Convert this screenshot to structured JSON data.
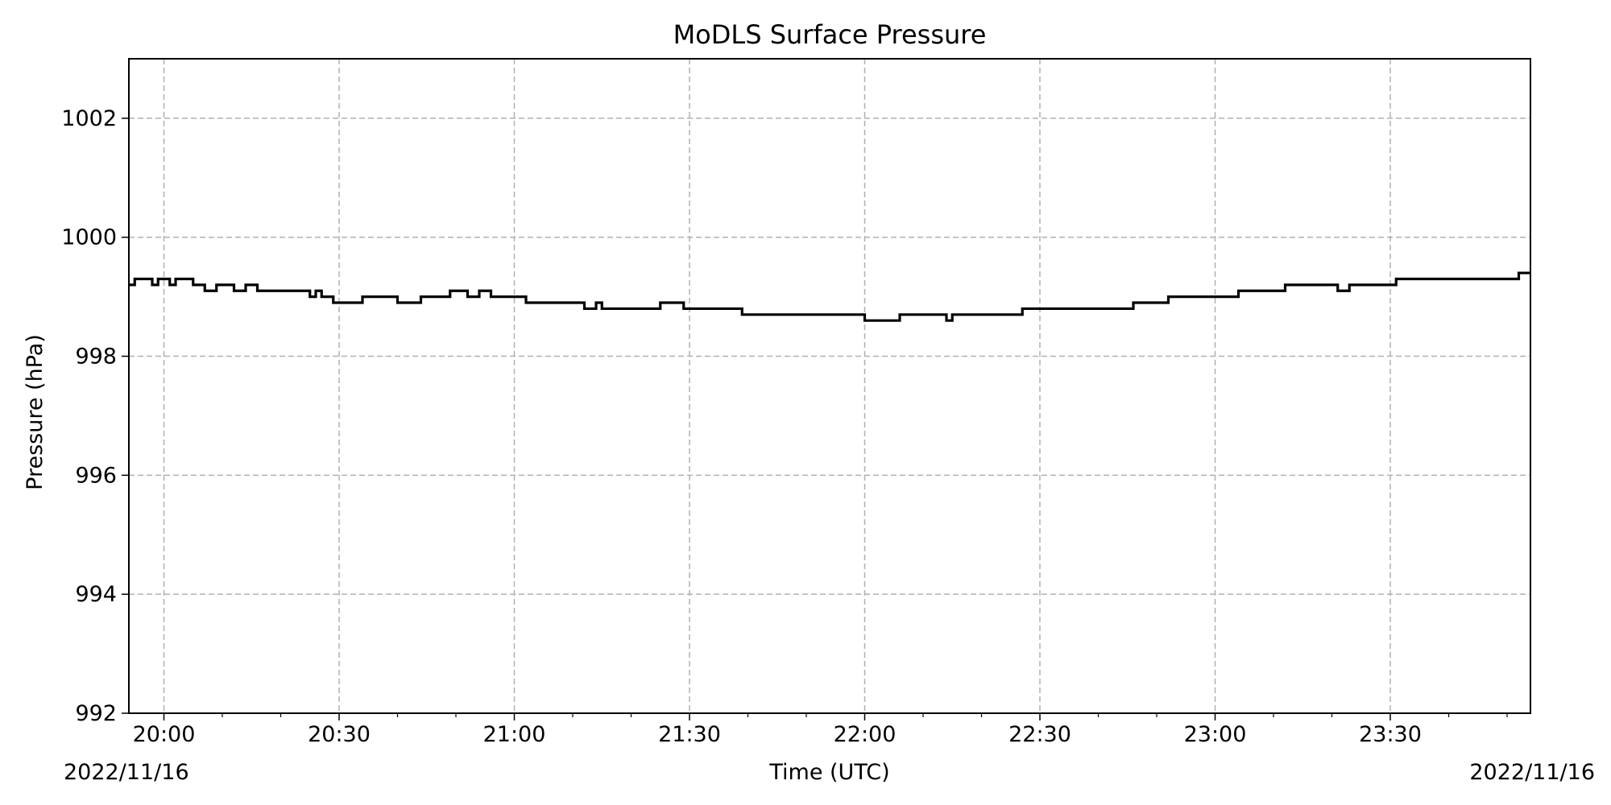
{
  "chart_data": {
    "type": "line",
    "title": "MoDLS Surface Pressure",
    "xlabel": "Time (UTC)",
    "ylabel": "Pressure (hPa)",
    "date_left": "2022/11/16",
    "date_right": "2022/11/16",
    "xlim": [
      "19:54",
      "23:54"
    ],
    "ylim": [
      992,
      1003
    ],
    "x_ticks": [
      "20:00",
      "20:30",
      "21:00",
      "21:30",
      "22:00",
      "22:30",
      "23:00",
      "23:30"
    ],
    "y_ticks": [
      992,
      994,
      996,
      998,
      1000,
      1002
    ],
    "grid": true,
    "line_color": "#000000",
    "grid_color": "#b0b0b0",
    "series": [
      {
        "step": "post",
        "x": [
          "19:54",
          "19:55",
          "19:58",
          "19:59",
          "20:01",
          "20:02",
          "20:05",
          "20:07",
          "20:09",
          "20:12",
          "20:14",
          "20:16",
          "20:20",
          "20:25",
          "20:26",
          "20:27",
          "20:29",
          "20:34",
          "20:40",
          "20:44",
          "20:49",
          "20:52",
          "20:54",
          "20:56",
          "20:57",
          "21:02",
          "21:12",
          "21:14",
          "21:15",
          "21:25",
          "21:29",
          "21:39",
          "21:51",
          "22:00",
          "22:01",
          "22:06",
          "22:14",
          "22:15",
          "22:17",
          "22:22",
          "22:27",
          "22:30",
          "22:46",
          "22:52",
          "23:04",
          "23:12",
          "23:21",
          "23:23",
          "23:31",
          "23:45",
          "23:48",
          "23:52",
          "23:54"
        ],
        "y": [
          999.2,
          999.3,
          999.2,
          999.3,
          999.2,
          999.3,
          999.2,
          999.1,
          999.2,
          999.1,
          999.2,
          999.1,
          999.1,
          999.0,
          999.1,
          999.0,
          998.9,
          999.0,
          998.9,
          999.0,
          999.1,
          999.0,
          999.1,
          999.0,
          999.0,
          998.9,
          998.8,
          998.9,
          998.8,
          998.9,
          998.8,
          998.7,
          998.7,
          998.6,
          998.6,
          998.7,
          998.6,
          998.7,
          998.7,
          998.7,
          998.8,
          998.8,
          998.9,
          999.0,
          999.1,
          999.2,
          999.1,
          999.2,
          999.3,
          999.3,
          999.3,
          999.4,
          999.4
        ]
      }
    ]
  }
}
